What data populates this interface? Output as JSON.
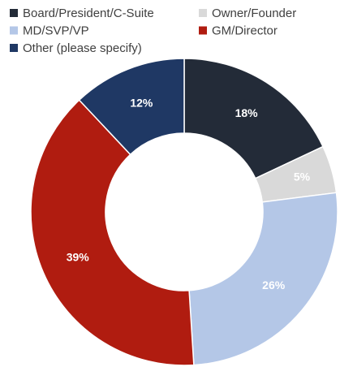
{
  "chart_data": {
    "type": "donut",
    "categories": [
      "Board/President/C-Suite",
      "Owner/Founder",
      "MD/SVP/VP",
      "GM/Director",
      "Other (please specify)"
    ],
    "values": [
      18,
      5,
      26,
      39,
      12
    ],
    "value_labels": [
      "18%",
      "5%",
      "26%",
      "39%",
      "12%"
    ],
    "colors": [
      "#232b38",
      "#d9d9d9",
      "#b4c7e7",
      "#b01c10",
      "#1f3864"
    ],
    "legend": "top"
  }
}
